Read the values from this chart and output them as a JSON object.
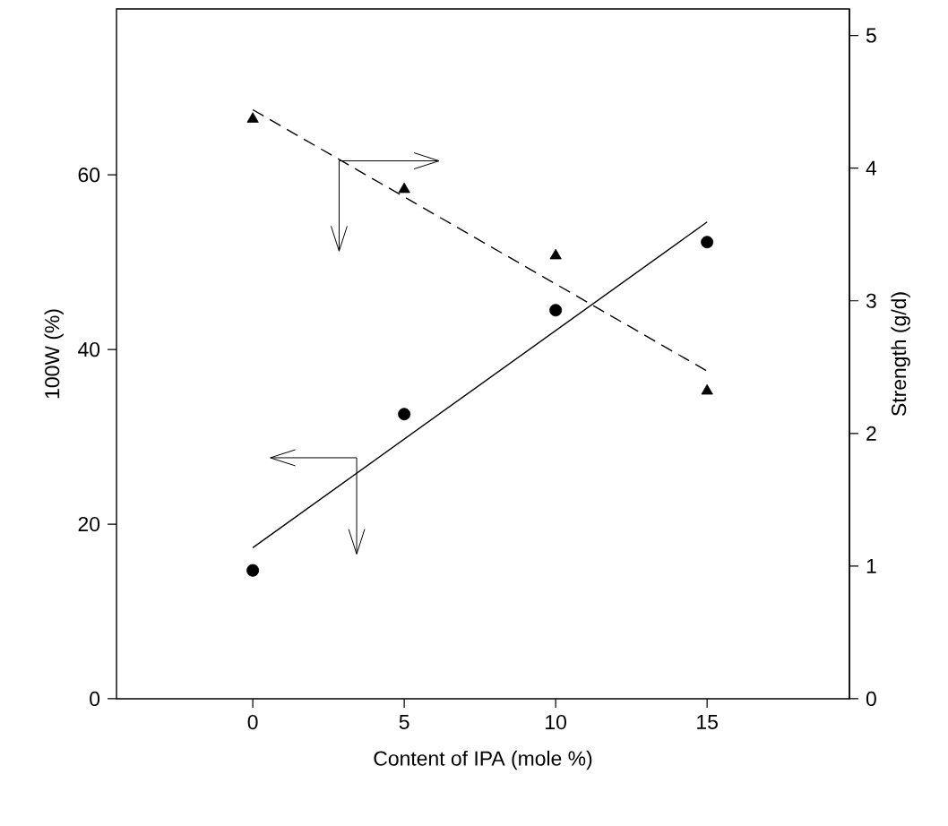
{
  "chart_data": {
    "type": "scatter",
    "xlabel": "Content of IPA (mole %)",
    "ylabel": "100W (%)",
    "y2label": "Strength (g/d)",
    "xlim": [
      -4.5,
      19.7
    ],
    "ylim": [
      0,
      79
    ],
    "y2lim": [
      0,
      5.2
    ],
    "xticks": [
      0,
      5,
      10,
      15
    ],
    "yticks": [
      0,
      20,
      40,
      60
    ],
    "y2ticks": [
      0,
      1,
      2,
      3,
      4,
      5
    ],
    "grid": false,
    "series": [
      {
        "marker": "circle",
        "color": "#000000",
        "x": [
          0,
          5,
          10,
          15
        ],
        "values": [
          14.7,
          32.6,
          44.5,
          52.3
        ]
      },
      {
        "type": "line",
        "line_style": "solid",
        "color": "#000000",
        "x": [
          0,
          15
        ],
        "values": [
          17.3,
          54.6
        ]
      },
      {
        "marker": "triangle",
        "axis": "y2",
        "color": "#000000",
        "x": [
          0,
          5,
          10,
          15
        ],
        "values": [
          4.37,
          3.84,
          3.34,
          2.32
        ]
      },
      {
        "type": "line",
        "line_style": "dashed",
        "axis": "y2",
        "color": "#000000",
        "x": [
          0,
          15
        ],
        "values": [
          4.44,
          2.47
        ]
      }
    ]
  }
}
